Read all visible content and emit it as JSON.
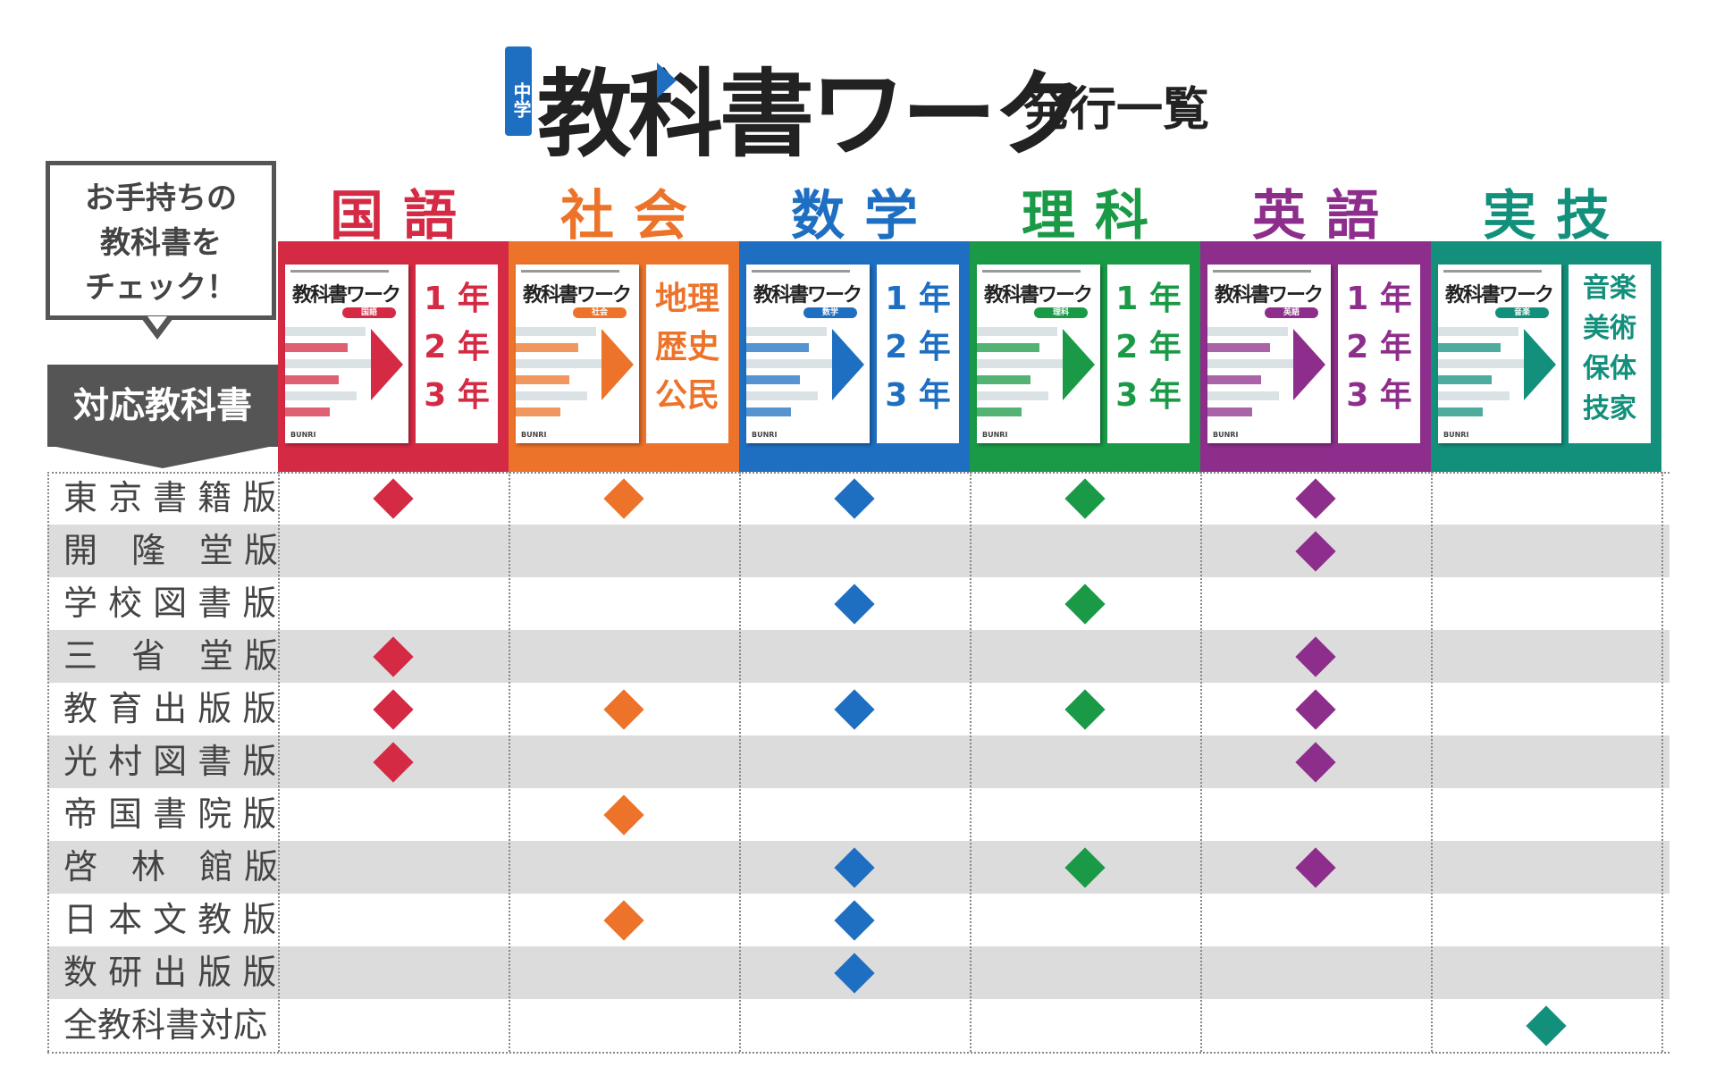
{
  "title": {
    "badge": "中学",
    "main": "教科書ワーク",
    "sub": "発行一覧"
  },
  "callout": [
    "お手持ちの",
    "教科書を",
    "チェック！"
  ],
  "row_header": "対応教科書",
  "colors": {
    "kokugo": "#d42a44",
    "shakai": "#ec7329",
    "sugaku": "#1e6fc1",
    "rika": "#1a9a47",
    "eigo": "#8e2e8c",
    "jitsugi": "#12907c",
    "row_alt": "#dcdcdc",
    "label_bg": "#555555"
  },
  "subjects": [
    {
      "id": "kokugo",
      "label": "国語",
      "cover_title": "教科書ワーク",
      "cover_tag": "国語",
      "grades": [
        "1 年",
        "2 年",
        "3 年"
      ],
      "cover_brand": "BUNRI"
    },
    {
      "id": "shakai",
      "label": "社会",
      "cover_title": "教科書ワーク",
      "cover_tag": "社会",
      "grades": [
        "地理",
        "歴史",
        "公民"
      ],
      "cover_brand": "BUNRI"
    },
    {
      "id": "sugaku",
      "label": "数学",
      "cover_title": "教科書ワーク",
      "cover_tag": "数学",
      "grades": [
        "1 年",
        "2 年",
        "3 年"
      ],
      "cover_brand": "BUNRI"
    },
    {
      "id": "rika",
      "label": "理科",
      "cover_title": "教科書ワーク",
      "cover_tag": "理科",
      "grades": [
        "1 年",
        "2 年",
        "3 年"
      ],
      "cover_brand": "BUNRI"
    },
    {
      "id": "eigo",
      "label": "英語",
      "cover_title": "教科書ワーク",
      "cover_tag": "英語",
      "grades": [
        "1 年",
        "2 年",
        "3 年"
      ],
      "cover_brand": "BUNRI"
    },
    {
      "id": "jitsugi",
      "label": "実技",
      "cover_title": "教科書ワーク",
      "cover_tag": "音楽",
      "grades": [
        "音楽",
        "美術",
        "保体",
        "技家"
      ],
      "cover_brand": "BUNRI"
    }
  ],
  "publishers": [
    {
      "name": "東 京 書 籍 版",
      "marks": [
        true,
        true,
        true,
        true,
        true,
        false
      ]
    },
    {
      "name": "開　隆　堂 版",
      "marks": [
        false,
        false,
        false,
        false,
        true,
        false
      ]
    },
    {
      "name": "学 校 図 書 版",
      "marks": [
        false,
        false,
        true,
        true,
        false,
        false
      ]
    },
    {
      "name": "三　省　堂 版",
      "marks": [
        true,
        false,
        false,
        false,
        true,
        false
      ]
    },
    {
      "name": "教 育 出 版 版",
      "marks": [
        true,
        true,
        true,
        true,
        true,
        false
      ]
    },
    {
      "name": "光 村 図 書 版",
      "marks": [
        true,
        false,
        false,
        false,
        true,
        false
      ]
    },
    {
      "name": "帝 国 書 院 版",
      "marks": [
        false,
        true,
        false,
        false,
        false,
        false
      ]
    },
    {
      "name": "啓　林　館 版",
      "marks": [
        false,
        false,
        true,
        true,
        true,
        false
      ]
    },
    {
      "name": "日 本 文 教 版",
      "marks": [
        false,
        true,
        true,
        false,
        false,
        false
      ]
    },
    {
      "name": "数 研 出 版 版",
      "marks": [
        false,
        false,
        true,
        false,
        false,
        false
      ]
    },
    {
      "name": "全教科書対応",
      "marks": [
        false,
        false,
        false,
        false,
        false,
        true
      ]
    }
  ]
}
